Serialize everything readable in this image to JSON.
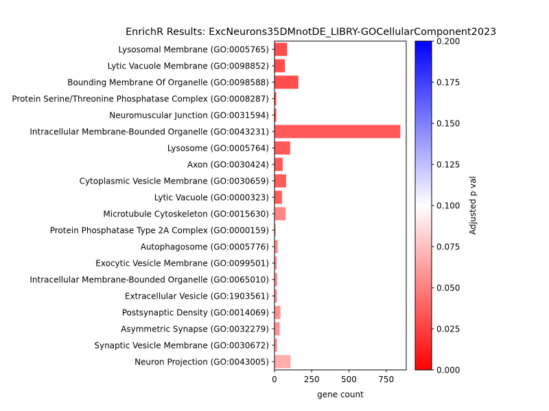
{
  "chart_data": {
    "type": "bar",
    "orientation": "horizontal",
    "title": "EnrichR Results: ExcNeurons35DMnotDE_LIBRY-GOCellularComponent2023",
    "xlabel": "gene count",
    "ylabel": "",
    "xlim": [
      0,
      885
    ],
    "xticks": [
      0,
      250,
      500,
      750
    ],
    "grid": false,
    "colorbar": {
      "label": "Adjusted p val",
      "range": [
        0,
        0.2
      ],
      "ticks": [
        "0.000",
        "0.025",
        "0.050",
        "0.075",
        "0.100",
        "0.125",
        "0.150",
        "0.175",
        "0.200"
      ],
      "colormap": [
        "#ff0000",
        "#ffffff",
        "#0000ff"
      ]
    },
    "categories": [
      "Lysosomal Membrane (GO:0005765)",
      "Lytic Vacuole Membrane (GO:0098852)",
      "Bounding Membrane Of Organelle (GO:0098588)",
      "Protein Serine/Threonine Phosphatase Complex (GO:0008287)",
      "Neuromuscular Junction (GO:0031594)",
      "Intracellular Membrane-Bounded Organelle (GO:0043231)",
      "Lysosome (GO:0005764)",
      "Axon (GO:0030424)",
      "Cytoplasmic Vesicle Membrane (GO:0030659)",
      "Lytic Vacuole (GO:0000323)",
      "Microtubule Cytoskeleton (GO:0015630)",
      "Protein Phosphatase Type 2A Complex (GO:0000159)",
      "Autophagosome (GO:0005776)",
      "Exocytic Vesicle Membrane (GO:0099501)",
      "Intracellular Membrane-Bounded Organelle (GO:0065010)",
      "Extracellular Vesicle (GO:1903561)",
      "Postsynaptic Density (GO:0014069)",
      "Asymmetric Synapse (GO:0032279)",
      "Synaptic Vesicle Membrane (GO:0030672)",
      "Neuron Projection (GO:0043005)"
    ],
    "values": [
      85,
      70,
      160,
      12,
      12,
      845,
      105,
      55,
      78,
      50,
      75,
      8,
      22,
      15,
      18,
      16,
      40,
      35,
      18,
      108
    ],
    "pvals": [
      0.013,
      0.013,
      0.013,
      0.014,
      0.014,
      0.018,
      0.018,
      0.018,
      0.02,
      0.02,
      0.04,
      0.04,
      0.043,
      0.043,
      0.043,
      0.043,
      0.047,
      0.047,
      0.05,
      0.06
    ]
  }
}
